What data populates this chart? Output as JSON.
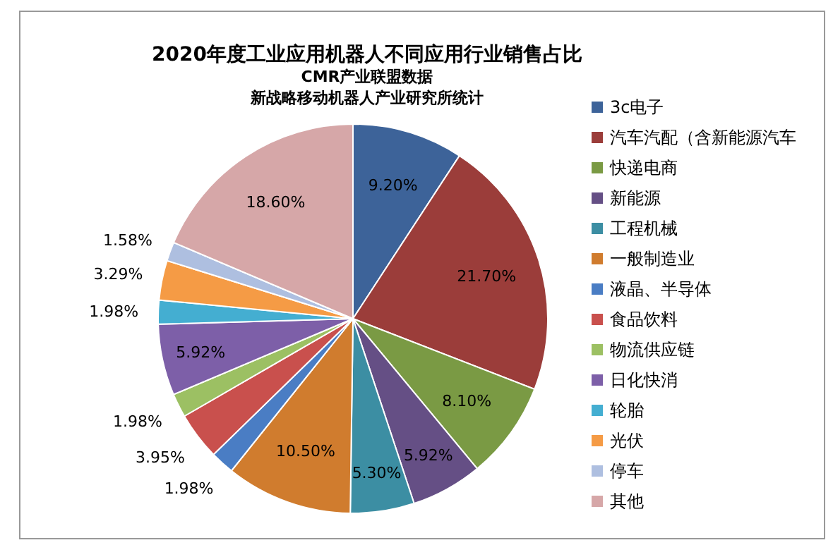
{
  "chart_data": {
    "type": "pie",
    "title": "2020年度工业应用机器人不同应用行业销售占比",
    "subtitle": "CMR产业联盟数据",
    "annotations": [
      "新战略移动机器人产业研究所统计"
    ],
    "categories": [
      "3c电子",
      "汽车汽配（含新能源汽车",
      "快递电商",
      "新能源",
      "工程机械",
      "一般制造业",
      "液晶、半导体",
      "食品饮料",
      "物流供应链",
      "日化快消",
      "轮胎",
      "光伏",
      "停车",
      "其他"
    ],
    "values": [
      9.2,
      21.7,
      8.1,
      5.92,
      5.3,
      10.5,
      1.98,
      3.95,
      1.98,
      5.92,
      1.98,
      3.29,
      1.58,
      18.6
    ],
    "value_labels": [
      "9.20%",
      "21.70%",
      "8.10%",
      "5.92%",
      "5.30%",
      "10.50%",
      "1.98%",
      "3.95%",
      "1.98%",
      "5.92%",
      "1.98%",
      "3.29%",
      "1.58%",
      "18.60%"
    ],
    "colors": [
      "#3d6399",
      "#9b3d3a",
      "#7a9a44",
      "#654f85",
      "#3c8ea3",
      "#d07c2e",
      "#4a7dc4",
      "#c9504d",
      "#9cc063",
      "#7d5fa8",
      "#44aed1",
      "#f59b45",
      "#aebfe0",
      "#d6a7a8"
    ],
    "legend": "right"
  }
}
